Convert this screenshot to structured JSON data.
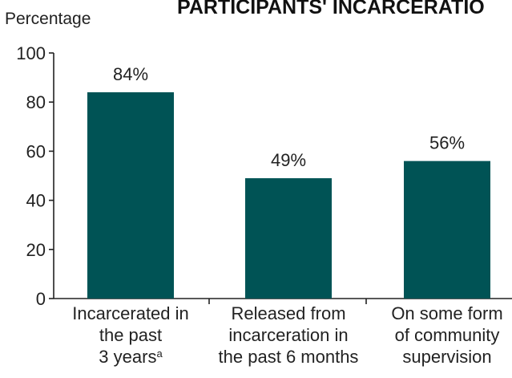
{
  "chart_data": {
    "type": "bar",
    "title": "PARTICIPANTS' INCARCERATIO",
    "ylabel": "Percentage",
    "xlabel": "",
    "ylim": [
      0,
      100
    ],
    "yticks": [
      0,
      20,
      40,
      60,
      80,
      100
    ],
    "grid": false,
    "bar_color": "#005355",
    "categories": [
      [
        "Incarcerated in",
        "the past",
        "3 years"
      ],
      [
        "Released from",
        "incarceration in",
        "the past 6 months"
      ],
      [
        "On some form",
        "of community",
        "supervision"
      ]
    ],
    "footnote_marks": [
      "a",
      "",
      ""
    ],
    "values": [
      84,
      49,
      56
    ],
    "data_labels": [
      "84%",
      "49%",
      "56%"
    ]
  }
}
